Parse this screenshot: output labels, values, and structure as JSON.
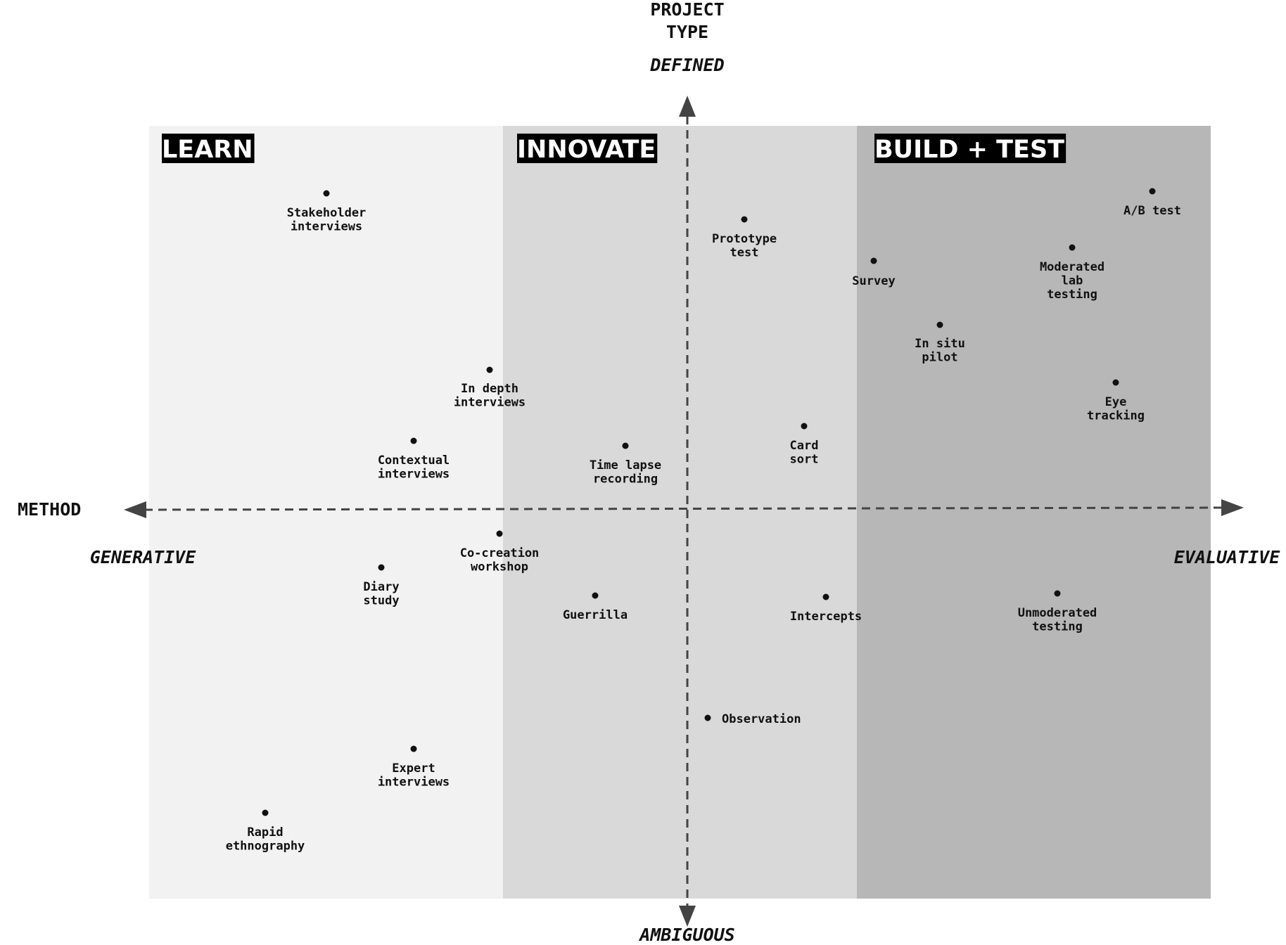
{
  "colors": {
    "learn_zone": "#f2f2f2",
    "innovate_zone": "#d9d9d9",
    "build_zone": "#b7b7b7",
    "axis": "#444444",
    "dot": "#111111",
    "label_bg": "#000000",
    "label_text": "#ffffff"
  },
  "zones": [
    {
      "id": "learn",
      "title": "LEARN"
    },
    {
      "id": "innovate",
      "title": "INNOVATE"
    },
    {
      "id": "build",
      "title": "BUILD + TEST"
    }
  ],
  "vertical_axis": {
    "title_line1": "PROJECT",
    "title_line2": "TYPE",
    "top": "DEFINED",
    "bottom": "AMBIGUOUS"
  },
  "horizontal_axis": {
    "title": "METHOD",
    "left": "GENERATIVE",
    "right": "EVALUATIVE"
  },
  "methods": [
    {
      "id": "stakeholder-interviews",
      "lines": [
        "Stakeholder",
        "interviews"
      ]
    },
    {
      "id": "prototype-test",
      "lines": [
        "Prototype",
        "test"
      ]
    },
    {
      "id": "survey",
      "lines": [
        "Survey"
      ]
    },
    {
      "id": "ab-test",
      "lines": [
        "A/B test"
      ]
    },
    {
      "id": "moderated-lab-testing",
      "lines": [
        "Moderated",
        "lab",
        "testing"
      ]
    },
    {
      "id": "in-situ-pilot",
      "lines": [
        "In situ",
        "pilot"
      ]
    },
    {
      "id": "in-depth-interviews",
      "lines": [
        "In depth",
        "interviews"
      ]
    },
    {
      "id": "eye-tracking",
      "lines": [
        "Eye",
        "tracking"
      ]
    },
    {
      "id": "contextual-interviews",
      "lines": [
        "Contextual",
        "interviews"
      ]
    },
    {
      "id": "time-lapse-recording",
      "lines": [
        "Time lapse",
        "recording"
      ]
    },
    {
      "id": "card-sort",
      "lines": [
        "Card",
        "sort"
      ]
    },
    {
      "id": "co-creation-workshop",
      "lines": [
        "Co-creation",
        "workshop"
      ]
    },
    {
      "id": "diary-study",
      "lines": [
        "Diary",
        "study"
      ]
    },
    {
      "id": "guerrilla",
      "lines": [
        "Guerrilla"
      ]
    },
    {
      "id": "intercepts",
      "lines": [
        "Intercepts"
      ]
    },
    {
      "id": "unmoderated-testing",
      "lines": [
        "Unmoderated",
        "testing"
      ]
    },
    {
      "id": "observation",
      "lines": [
        "Observation"
      ]
    },
    {
      "id": "expert-interviews",
      "lines": [
        "Expert",
        "interviews"
      ]
    },
    {
      "id": "rapid-ethnography",
      "lines": [
        "Rapid",
        "ethnography"
      ]
    }
  ]
}
